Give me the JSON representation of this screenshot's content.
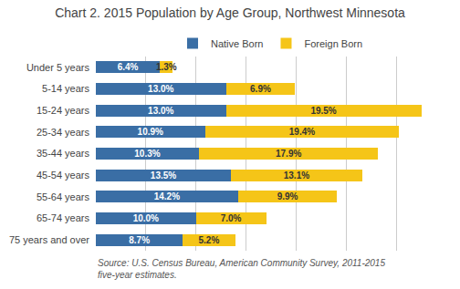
{
  "chart_data": {
    "type": "bar",
    "orientation": "horizontal",
    "stacked": true,
    "title": "Chart 2. 2015 Population by Age Group, Northwest Minnesota",
    "categories": [
      "Under 5 years",
      "5-14 years",
      "15-24 years",
      "25-34 years",
      "35-44 years",
      "45-54 years",
      "55-64 years",
      "65-74 years",
      "75 years and over"
    ],
    "series": [
      {
        "name": "Native Born",
        "color": "#3A6EA5",
        "values": [
          6.4,
          13.0,
          13.0,
          10.9,
          10.3,
          13.5,
          14.2,
          10.0,
          8.7
        ],
        "value_labels": [
          "6.4%",
          "13.0%",
          "13.0%",
          "10.9%",
          "10.3%",
          "13.5%",
          "14.2%",
          "10.0%",
          "8.7%"
        ]
      },
      {
        "name": "Foreign Born",
        "color": "#F5C518",
        "values": [
          1.3,
          6.9,
          19.5,
          19.4,
          17.9,
          13.1,
          9.9,
          7.0,
          5.2
        ],
        "value_labels": [
          "1.3%",
          "6.9%",
          "19.5%",
          "19.4%",
          "17.9%",
          "13.1%",
          "9.9%",
          "7.0%",
          "5.2%"
        ]
      }
    ],
    "data_labels": true,
    "xlim": [
      0,
      35
    ],
    "xticks": [
      0,
      5,
      10,
      15,
      20,
      25,
      30,
      35
    ],
    "grid": true,
    "tick_labels": "y",
    "legend": "top",
    "annotations": [
      "Source: U.S. Census Bureau, American Community Survey, 2011-2015\nfive-year estimates."
    ]
  }
}
